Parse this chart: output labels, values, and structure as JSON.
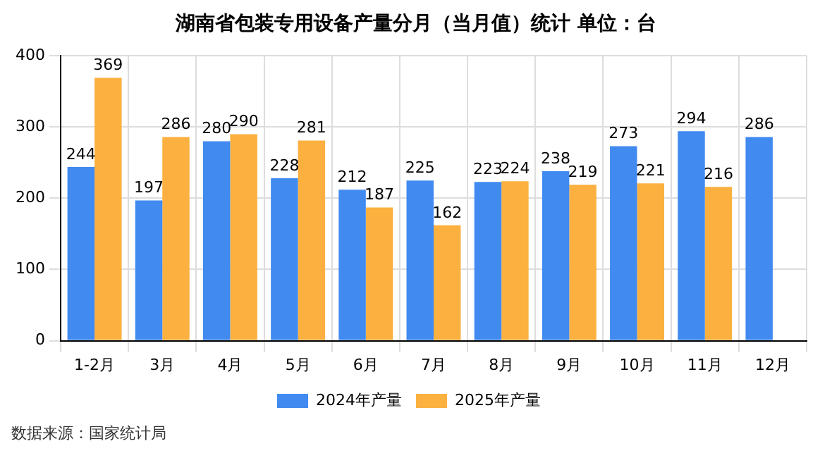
{
  "chart_data": {
    "type": "bar",
    "title": "湖南省包装专用设备产量分月（当月值）统计  单位：台",
    "categories": [
      "1-2月",
      "3月",
      "4月",
      "5月",
      "6月",
      "7月",
      "8月",
      "9月",
      "10月",
      "11月",
      "12月"
    ],
    "series": [
      {
        "name": "2024年产量",
        "color": "#418af0",
        "values": [
          244,
          197,
          280,
          228,
          212,
          225,
          223,
          238,
          273,
          294,
          286
        ]
      },
      {
        "name": "2025年产量",
        "color": "#fbb03f",
        "values": [
          369,
          286,
          290,
          281,
          187,
          162,
          224,
          219,
          221,
          216,
          null
        ]
      }
    ],
    "ylim": [
      0,
      400
    ],
    "yticks": [
      0,
      100,
      200,
      300,
      400
    ],
    "grid": true,
    "legend": "bottom",
    "data_labels": true,
    "annotations": [
      "数据来源：国家统计局"
    ]
  }
}
